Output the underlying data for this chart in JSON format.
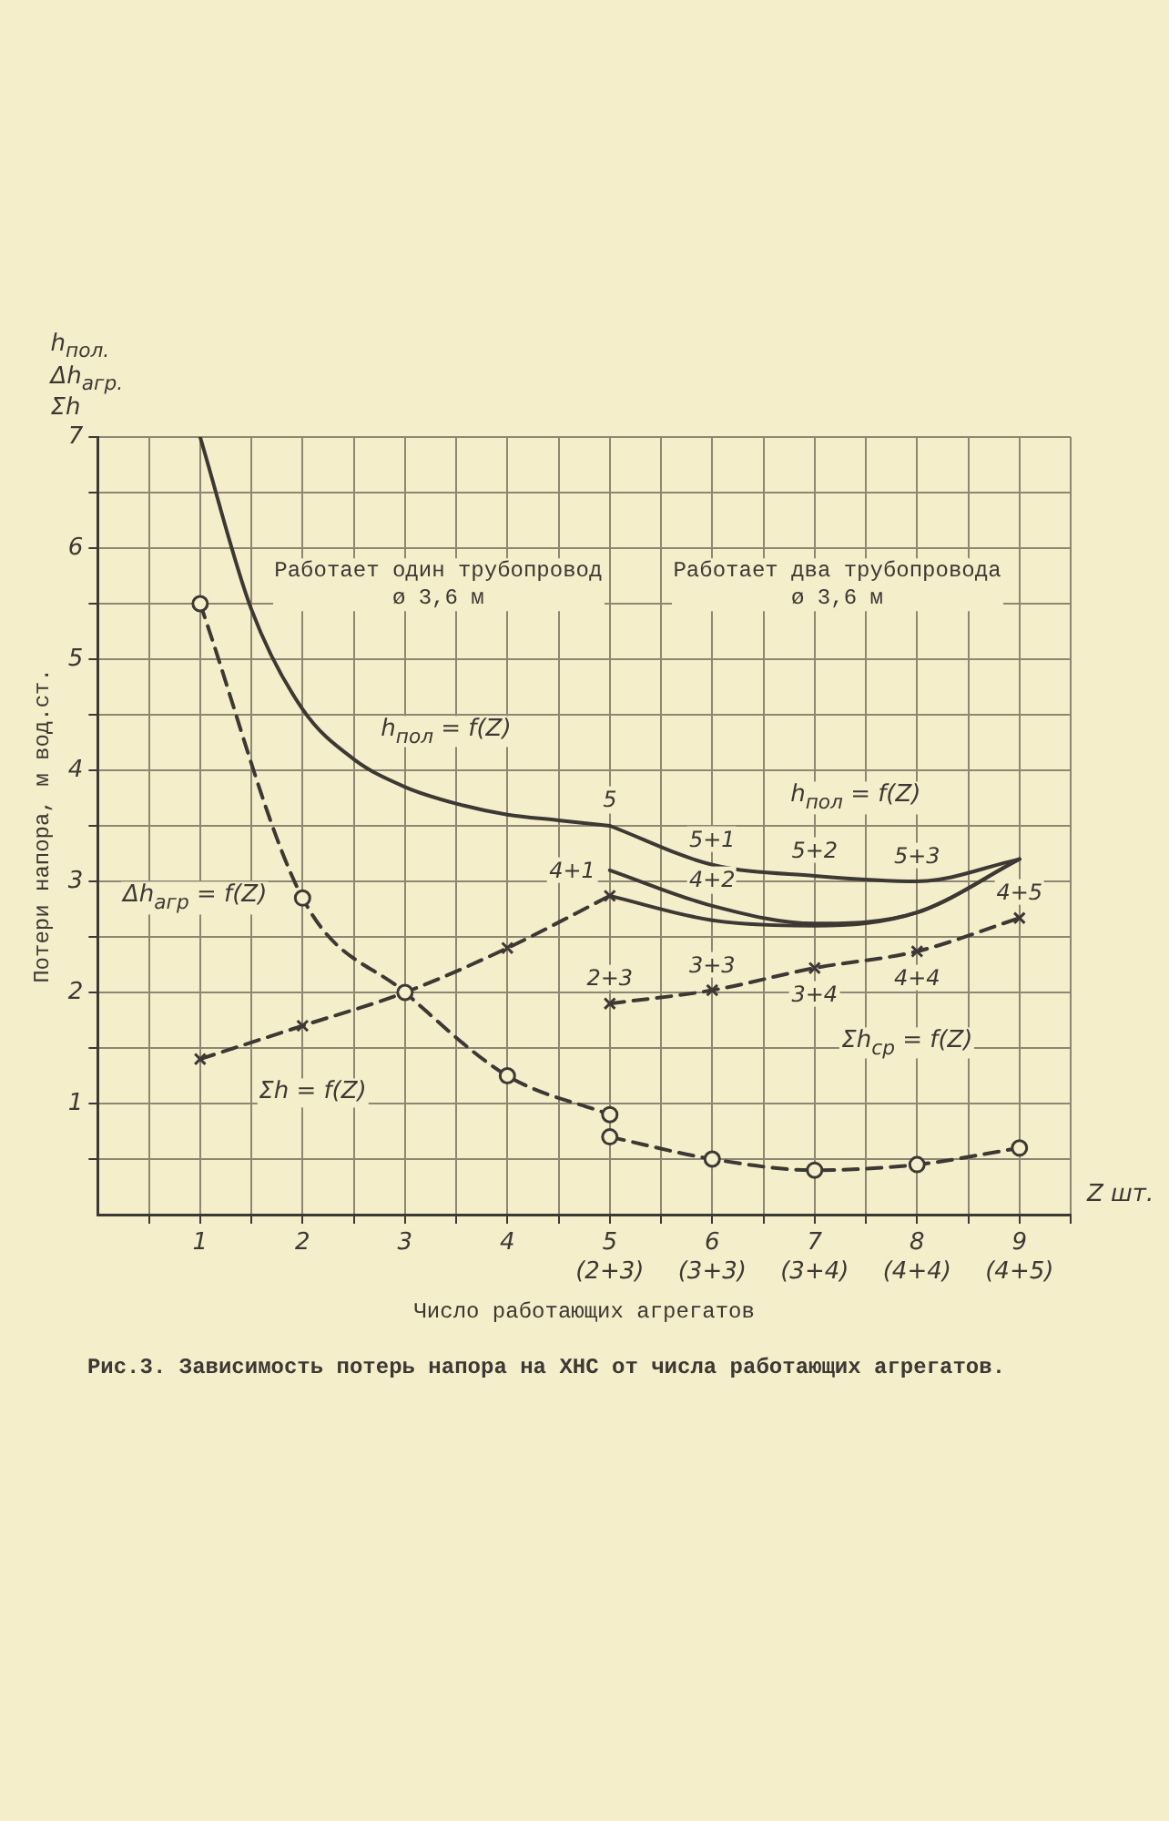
{
  "chart_data": {
    "type": "line",
    "title": "Рис.3. Зависимость потерь напора на ХНС от числа работающих агрегатов.",
    "xlabel": "Число работающих агрегатов",
    "ylabel": "Потери напора, м вод.ст.",
    "xlim": [
      0,
      9.5
    ],
    "xticks": [
      {
        "value": 0.5,
        "label": null
      },
      1,
      {
        "value": 1.5,
        "label": null
      },
      2,
      {
        "value": 2.5,
        "label": null
      },
      3,
      {
        "value": 3.5,
        "label": null
      },
      4,
      {
        "value": 4.5,
        "label": null
      },
      {
        "value": 5,
        "label": "5\n(2+3)"
      },
      {
        "value": 5.5,
        "label": null
      },
      {
        "value": 6,
        "label": "6\n(3+3)"
      },
      {
        "value": 6.5,
        "label": null
      },
      {
        "value": 7,
        "label": "7\n(3+4)"
      },
      {
        "value": 7.5,
        "label": null
      },
      {
        "value": 8,
        "label": "8\n(4+4)"
      },
      {
        "value": 8.5,
        "label": null
      },
      {
        "value": 9,
        "label": "9\n(4+5)"
      },
      {
        "value": 9.5,
        "label": null
      }
    ],
    "ylim": [
      0,
      7
    ],
    "yticks": [
      {
        "value": 0.5,
        "label": null
      },
      1,
      {
        "value": 1.5,
        "label": null
      },
      2,
      {
        "value": 2.5,
        "label": null
      },
      3,
      {
        "value": 3.5,
        "label": null
      },
      4,
      {
        "value": 4.5,
        "label": null
      },
      5,
      {
        "value": 5.5,
        "label": null
      },
      6,
      {
        "value": 6.5,
        "label": null
      },
      7
    ],
    "grid": true,
    "series": [
      {
        "color": "#3c3833",
        "line_style": "solid",
        "marker": "none",
        "x": [
          1,
          1.5,
          2,
          2.5,
          3,
          3.5,
          4,
          4.5,
          5
        ],
        "values": [
          7.0,
          5.45,
          4.55,
          4.1,
          3.85,
          3.7,
          3.6,
          3.55,
          3.5
        ]
      },
      {
        "color": "#3c3833",
        "line_style": "dashed",
        "marker": "circle",
        "x": [
          1,
          2,
          3,
          4,
          5
        ],
        "values": [
          5.5,
          2.85,
          2.0,
          1.25,
          0.9
        ]
      },
      {
        "color": "#3c3833",
        "line_style": "dashed",
        "marker": "cross",
        "x": [
          1,
          2,
          3,
          4,
          5
        ],
        "values": [
          1.4,
          1.7,
          2.0,
          2.4,
          2.87
        ]
      },
      {
        "color": "#3c3833",
        "line_style": "solid",
        "marker": "none",
        "x": [
          5,
          6,
          7,
          8,
          9
        ],
        "values": [
          3.5,
          3.15,
          3.05,
          3.0,
          3.2
        ]
      },
      {
        "color": "#3c3833",
        "line_style": "solid",
        "marker": "none",
        "x": [
          5,
          6,
          7,
          8,
          9
        ],
        "values": [
          3.1,
          2.78,
          2.62,
          2.72,
          3.2
        ]
      },
      {
        "color": "#3c3833",
        "line_style": "solid",
        "marker": "none",
        "x": [
          5,
          6,
          7,
          8,
          9
        ],
        "values": [
          2.87,
          2.65,
          2.6,
          2.72,
          3.2
        ]
      },
      {
        "color": "#3c3833",
        "line_style": "dashed",
        "marker": "cross",
        "x": [
          5,
          6,
          7,
          8,
          9
        ],
        "values": [
          1.9,
          2.02,
          2.22,
          2.37,
          2.67
        ]
      },
      {
        "color": "#3c3833",
        "line_style": "dashed",
        "marker": "circle",
        "x": [
          5,
          6,
          7,
          8,
          9
        ],
        "values": [
          0.7,
          0.5,
          0.4,
          0.45,
          0.6
        ]
      }
    ],
    "annotations": [
      "h$_{пол.}$\nΔh$_{агр.}$\nΣh",
      "Z шт.",
      "Работает один трубопровод\nø 3,6 м",
      "Работает два трубопровода\nø 3,6 м",
      "h$_{пол}$ = f(Z)",
      "Δh$_{агр}$ = f(Z)",
      "Σh = f(Z)",
      "h$_{пол}$ = f(Z)",
      "Σh$_{ср}$ = f(Z)",
      {
        "text": "5",
        "x": 5,
        "y": 3.5
      },
      {
        "text": "4+1",
        "x": 5,
        "y": 3.1
      },
      {
        "text": "5+1",
        "x": 6,
        "y": 3.15
      },
      {
        "text": "5+2",
        "x": 7,
        "y": 3.05
      },
      {
        "text": "5+3",
        "x": 8,
        "y": 3.0
      },
      {
        "text": "4+2",
        "x": 6,
        "y": 2.78
      },
      {
        "text": "2+3",
        "x": 5,
        "y": 1.9
      },
      {
        "text": "3+3",
        "x": 6,
        "y": 2.02
      },
      {
        "text": "3+4",
        "x": 7,
        "y": 2.22
      },
      {
        "text": "4+4",
        "x": 8,
        "y": 2.37
      },
      {
        "text": "4+5",
        "x": 9,
        "y": 2.67
      }
    ]
  }
}
